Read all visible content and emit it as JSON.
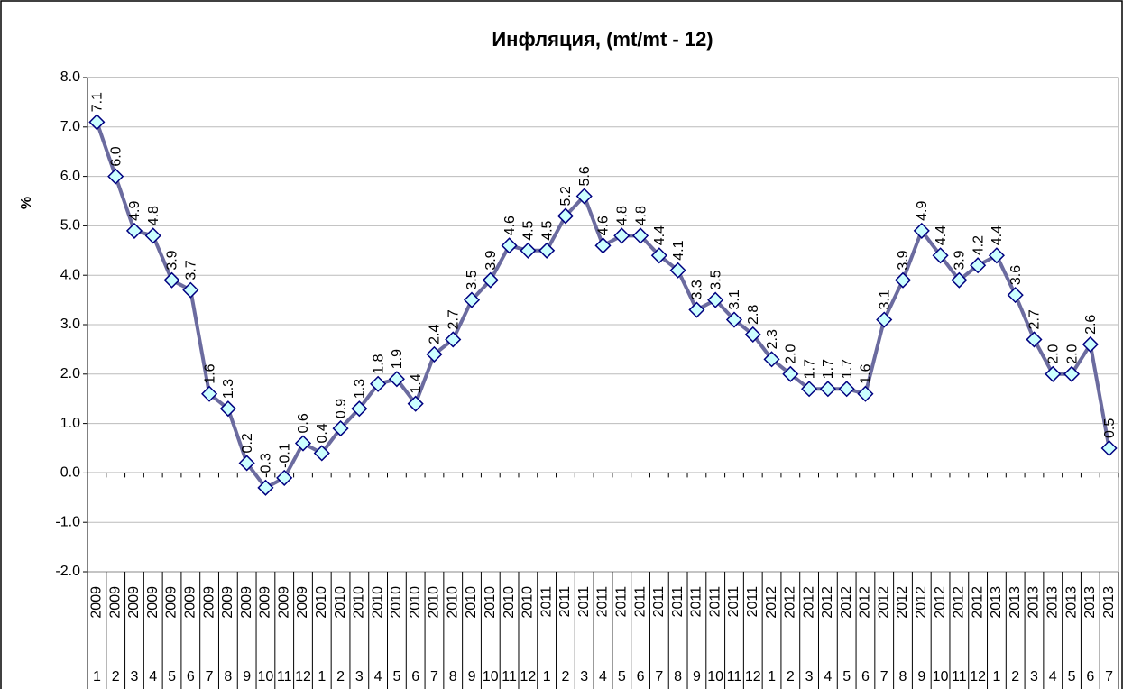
{
  "chart_data": {
    "type": "line",
    "title": "Инфляция, (mt/mt - 12)",
    "y_label": "%",
    "categories": [
      "1",
      "2",
      "3",
      "4",
      "5",
      "6",
      "7",
      "8",
      "9",
      "10",
      "11",
      "12",
      "1",
      "2",
      "3",
      "4",
      "5",
      "6",
      "7",
      "8",
      "9",
      "10",
      "11",
      "12",
      "1",
      "2",
      "3",
      "4",
      "5",
      "6",
      "7",
      "8",
      "9",
      "10",
      "11",
      "12",
      "1",
      "2",
      "3",
      "4",
      "5",
      "6",
      "7",
      "8",
      "9",
      "10",
      "11",
      "12",
      "1",
      "2",
      "3",
      "4",
      "5",
      "6",
      "7"
    ],
    "category_groups": [
      "2009",
      "2009",
      "2009",
      "2009",
      "2009",
      "2009",
      "2009",
      "2009",
      "2009",
      "2009",
      "2009",
      "2009",
      "2010",
      "2010",
      "2010",
      "2010",
      "2010",
      "2010",
      "2010",
      "2010",
      "2010",
      "2010",
      "2010",
      "2010",
      "2011",
      "2011",
      "2011",
      "2011",
      "2011",
      "2011",
      "2011",
      "2011",
      "2011",
      "2011",
      "2011",
      "2011",
      "2012",
      "2012",
      "2012",
      "2012",
      "2012",
      "2012",
      "2012",
      "2012",
      "2012",
      "2012",
      "2012",
      "2012",
      "2013",
      "2013",
      "2013",
      "2013",
      "2013",
      "2013",
      "2013"
    ],
    "values": [
      7.1,
      6.0,
      4.9,
      4.8,
      3.9,
      3.7,
      1.6,
      1.3,
      0.2,
      -0.3,
      -0.1,
      0.6,
      0.4,
      0.9,
      1.3,
      1.8,
      1.9,
      1.4,
      2.4,
      2.7,
      3.5,
      3.9,
      4.6,
      4.5,
      4.5,
      5.2,
      5.6,
      4.6,
      4.8,
      4.8,
      4.4,
      4.1,
      3.3,
      3.5,
      3.1,
      2.8,
      2.3,
      2.0,
      1.7,
      1.7,
      1.7,
      1.6,
      3.1,
      3.9,
      4.9,
      4.4,
      3.9,
      4.2,
      4.4,
      3.6,
      2.7,
      2.0,
      2.0,
      2.6,
      0.5
    ],
    "value_labels": [
      "7.1",
      "6.0",
      "4.9",
      "4.8",
      "3.9",
      "3.7",
      "1.6",
      "1.3",
      "0.2",
      "-0.3",
      "-0.1",
      "0.6",
      "0.4",
      "0.9",
      "1.3",
      "1.8",
      "1.9",
      "1.4",
      "2.4",
      "2.7",
      "3.5",
      "3.9",
      "4.6",
      "4.5",
      "4.5",
      "5.2",
      "5.6",
      "4.6",
      "4.8",
      "4.8",
      "4.4",
      "4.1",
      "3.3",
      "3.5",
      "3.1",
      "2.8",
      "2.3",
      "2.0",
      "1.7",
      "1.7",
      "1.7",
      "1.6",
      "3.1",
      "3.9",
      "4.9",
      "4.4",
      "3.9",
      "4.2",
      "4.4",
      "3.6",
      "2.7",
      "2.0",
      "2.0",
      "2.6",
      "0.5"
    ],
    "color": "#6b6b9f",
    "marker_color": "#ccffff",
    "ylim": [
      -2,
      8
    ],
    "yticks": [
      {
        "value": -2,
        "label": "-2.0"
      },
      {
        "value": -1,
        "label": "-1.0"
      },
      {
        "value": 0,
        "label": "0.0"
      },
      {
        "value": 1,
        "label": "1.0"
      },
      {
        "value": 2,
        "label": "2.0"
      },
      {
        "value": 3,
        "label": "3.0"
      },
      {
        "value": 4,
        "label": "4.0"
      },
      {
        "value": 5,
        "label": "5.0"
      },
      {
        "value": 6,
        "label": "6.0"
      },
      {
        "value": 7,
        "label": "7.0"
      },
      {
        "value": 8,
        "label": "8.0"
      }
    ],
    "grid": true
  }
}
